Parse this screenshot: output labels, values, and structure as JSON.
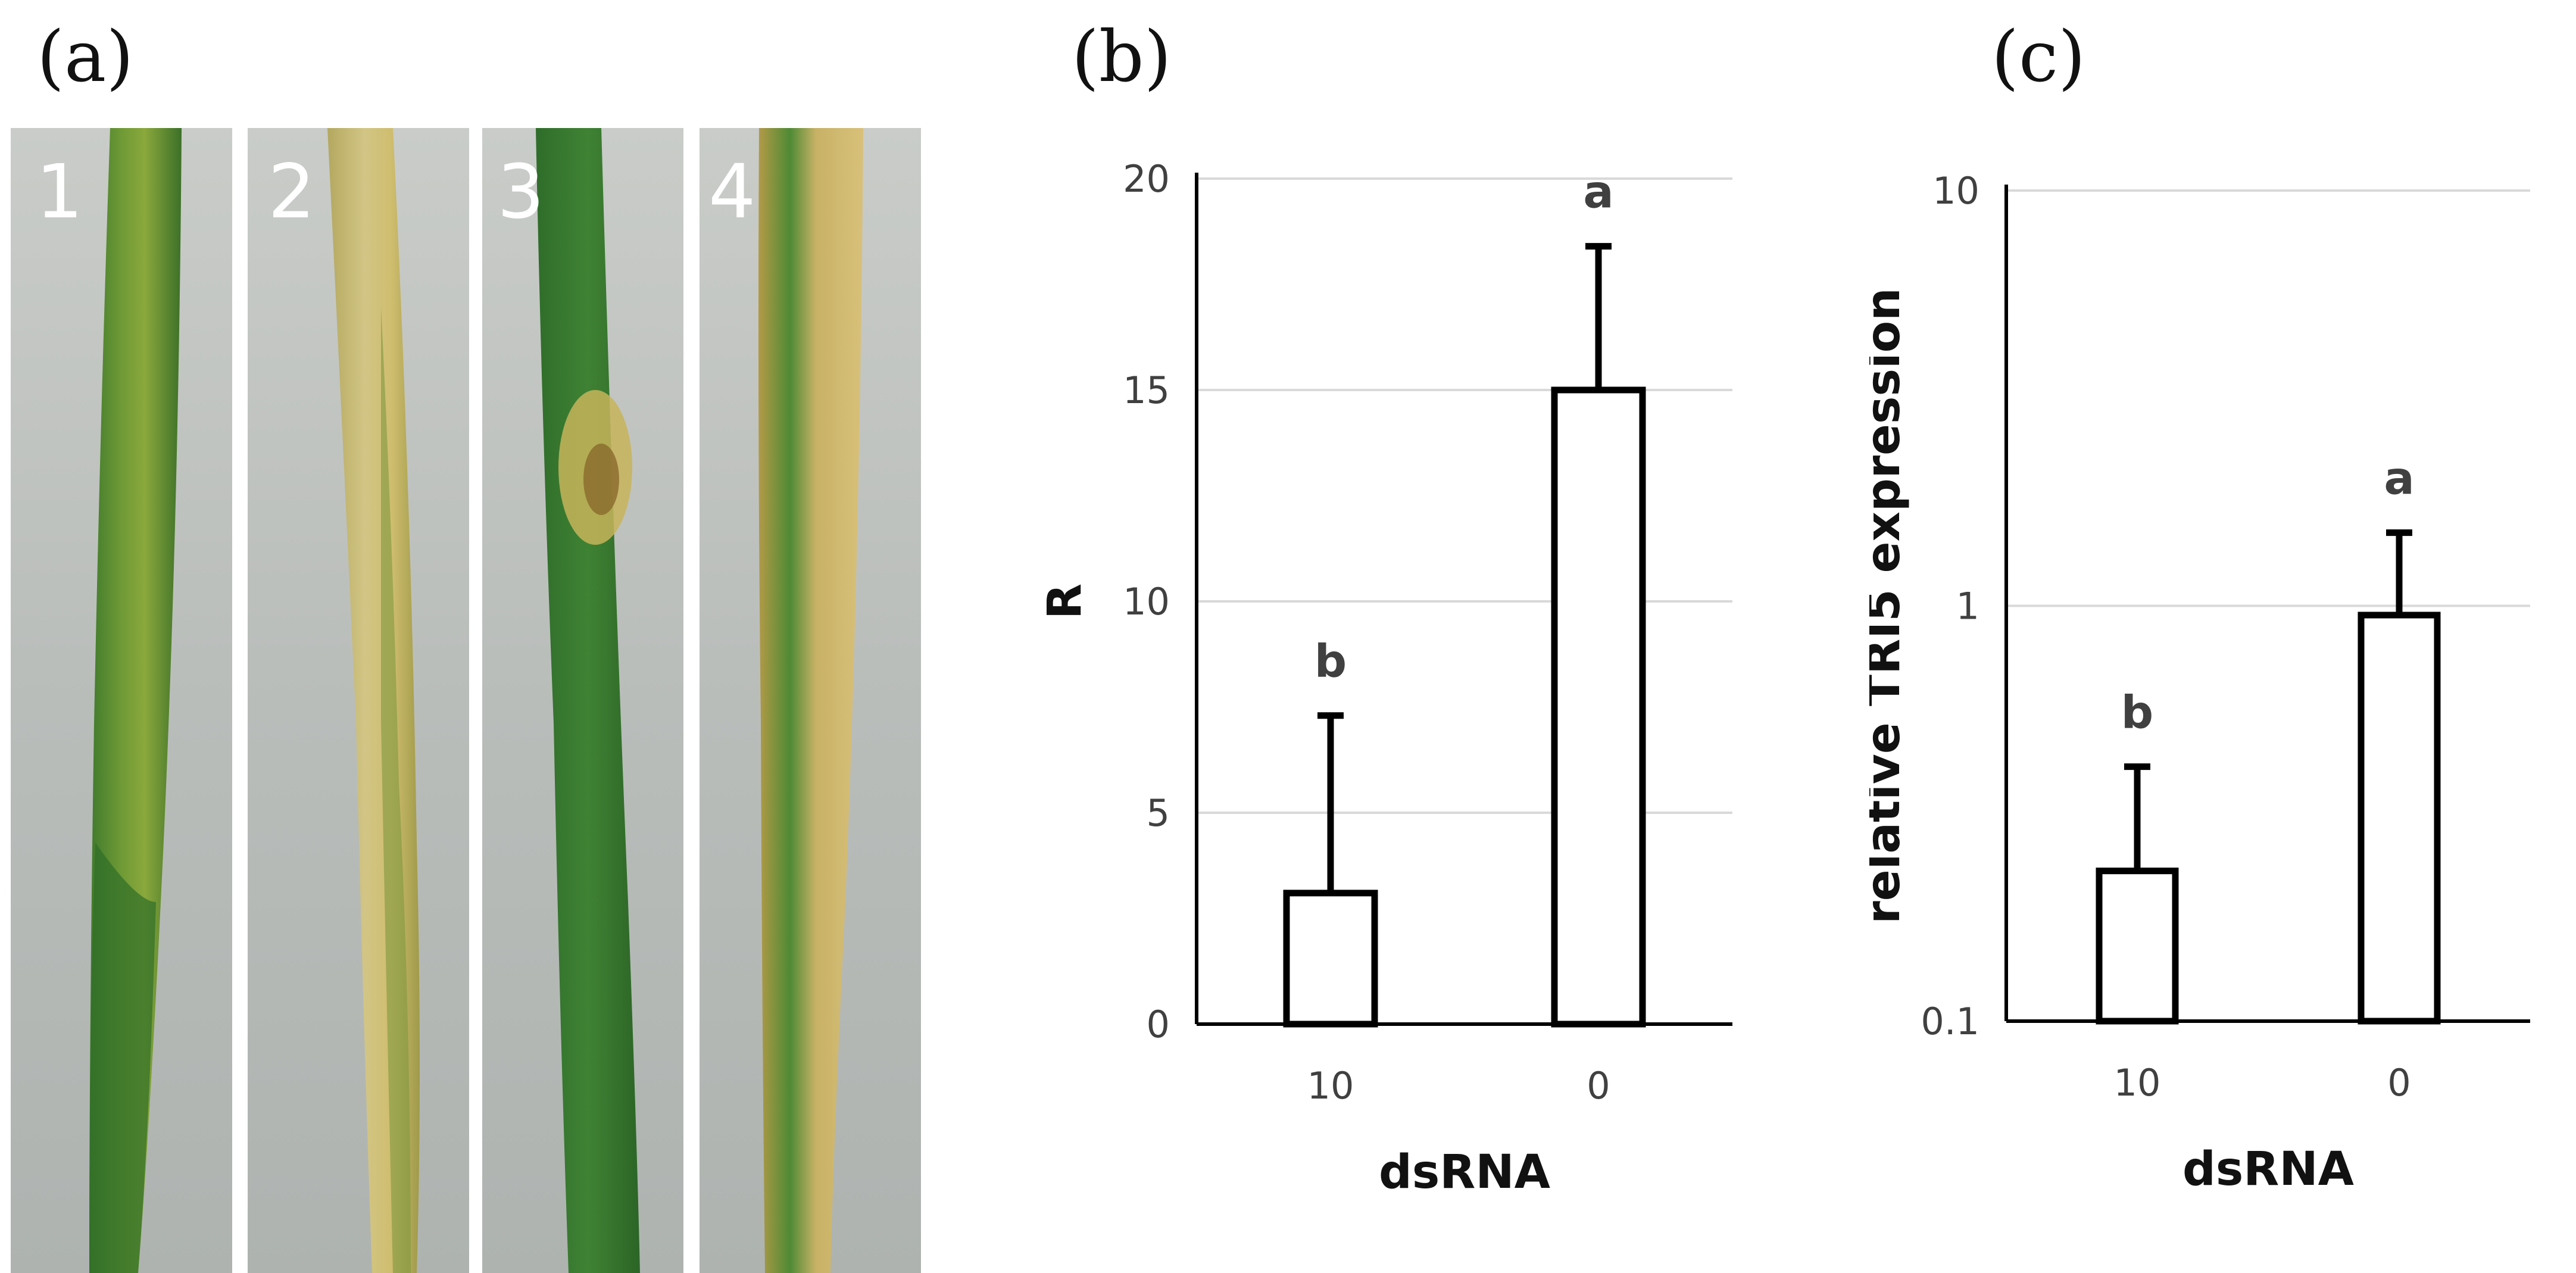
{
  "panels": {
    "a": {
      "label": "(a)",
      "strip_numbers": [
        "1",
        "2",
        "3",
        "4"
      ]
    },
    "b": {
      "label": "(b)"
    },
    "c": {
      "label": "(c)"
    }
  },
  "colors": {
    "axis": "#000000",
    "grid": "#d9d9d9",
    "tick_text": "#404040",
    "title_text": "#111111",
    "sig_text": "#404040",
    "bar_fill": "#ffffff",
    "bar_stroke": "#000000"
  },
  "chart_data": [
    {
      "type": "bar",
      "panel": "(b)",
      "title": "",
      "xlabel": "dsRNA",
      "ylabel": "R",
      "categories": [
        "10",
        "0"
      ],
      "values": [
        3.1,
        15.0
      ],
      "errors": [
        4.2,
        3.4
      ],
      "significance": [
        "b",
        "a"
      ],
      "ylim": [
        0,
        20
      ],
      "yticks": [
        0,
        5,
        10,
        15,
        20
      ],
      "ytick_labels": [
        "0",
        "5",
        "10",
        "15",
        "20"
      ],
      "yscale": "linear",
      "grid": true
    },
    {
      "type": "bar",
      "panel": "(c)",
      "title": "",
      "xlabel": "dsRNA",
      "ylabel": "relative TRI5 expression",
      "categories": [
        "10",
        "0"
      ],
      "values": [
        0.23,
        0.95
      ],
      "error_tops": [
        0.41,
        1.5
      ],
      "significance": [
        "b",
        "a"
      ],
      "ylim": [
        0.1,
        10
      ],
      "yticks": [
        0.1,
        1,
        10
      ],
      "ytick_labels": [
        "0.1",
        "1",
        "10"
      ],
      "yscale": "log",
      "grid": true
    }
  ]
}
